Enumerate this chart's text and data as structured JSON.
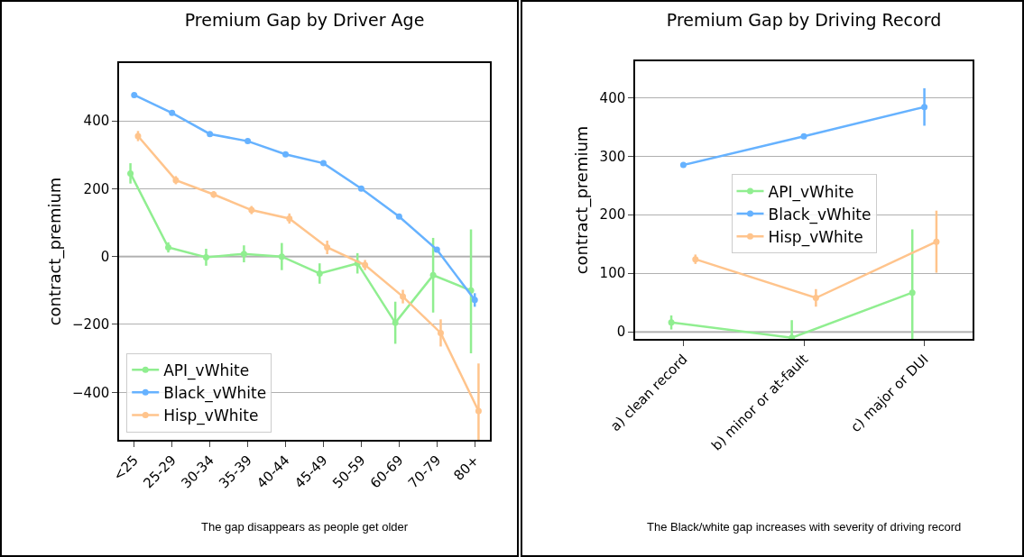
{
  "chart_data": [
    {
      "type": "line",
      "title": "Premium Gap by Driver Age",
      "ylabel": "contract_premium",
      "categories": [
        "<25",
        "25-29",
        "30-34",
        "35-39",
        "40-44",
        "45-49",
        "50-59",
        "60-69",
        "70-79",
        "80+"
      ],
      "ylim": [
        -540,
        570
      ],
      "yticks": [
        -400,
        -200,
        0,
        200,
        400
      ],
      "grid": "y",
      "legend": "bottom left",
      "marker": "circle",
      "ref_lines": [
        {
          "axis": "y",
          "value": 0,
          "color": "#cccccc"
        }
      ],
      "annotations": [
        "The gap disappears as people get older"
      ],
      "series": [
        {
          "name": "API_vWhite",
          "color": "#90ee90",
          "values": [
            245,
            27,
            -2,
            8,
            0,
            -50,
            -20,
            -195,
            -55,
            -100
          ],
          "errors": [
            30,
            15,
            25,
            25,
            40,
            30,
            30,
            62,
            110,
            [
              -285,
              80
            ]
          ]
        },
        {
          "name": "Black_vWhite",
          "color": "#66b2ff",
          "values": [
            476,
            423,
            361,
            340,
            301,
            275,
            200,
            118,
            20,
            -128
          ],
          "errors": [
            null,
            null,
            null,
            null,
            null,
            null,
            null,
            null,
            null,
            20
          ]
        },
        {
          "name": "Hisp_vWhite",
          "color": "#ffc48c",
          "values": [
            355,
            225,
            183,
            137,
            112,
            27,
            -25,
            -118,
            -225,
            -455
          ],
          "errors": [
            15,
            12,
            10,
            12,
            15,
            20,
            15,
            20,
            40,
            [
              -540,
              -315
            ]
          ]
        }
      ]
    },
    {
      "type": "line",
      "title": "Premium Gap by Driving Record",
      "ylabel": "contract_premium",
      "categories": [
        "a) clean record",
        "b) minor or at-fault",
        "c) major or DUI"
      ],
      "ylim": [
        -12,
        462
      ],
      "yticks": [
        0,
        100,
        200,
        300,
        400
      ],
      "grid": "y",
      "legend": "center",
      "marker": "circle",
      "ref_lines": [
        {
          "axis": "y",
          "value": 0,
          "color": "#cccccc"
        }
      ],
      "annotations": [
        "The Black/white gap increases with severity of driving record"
      ],
      "series": [
        {
          "name": "API_vWhite",
          "color": "#90ee90",
          "values": [
            16,
            -10,
            67
          ],
          "errors": [
            12,
            [
              -12,
              20
            ],
            [
              -12,
              175
            ]
          ]
        },
        {
          "name": "Black_vWhite",
          "color": "#66b2ff",
          "values": [
            285,
            334,
            384
          ],
          "errors": [
            null,
            null,
            32
          ]
        },
        {
          "name": "Hisp_vWhite",
          "color": "#ffc48c",
          "values": [
            124,
            58,
            154
          ],
          "errors": [
            8,
            15,
            53
          ]
        }
      ]
    }
  ]
}
